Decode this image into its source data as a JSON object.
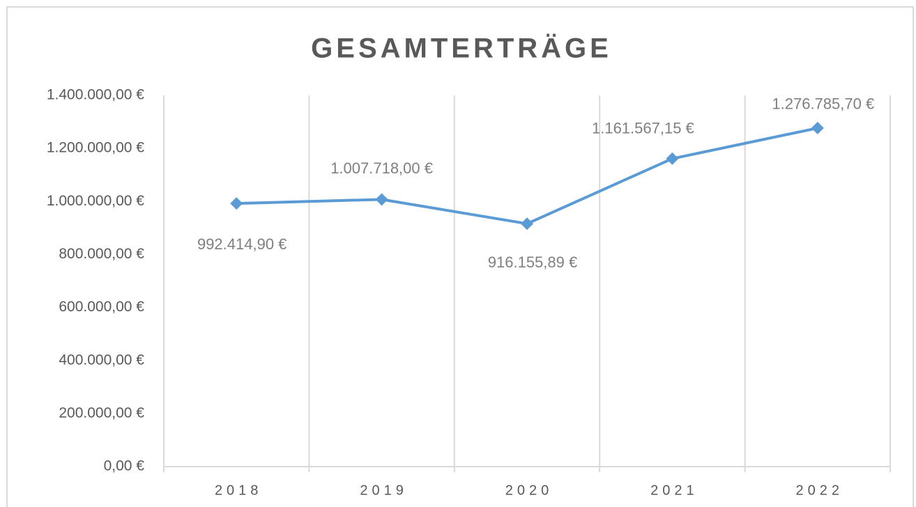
{
  "chart_data": {
    "type": "line",
    "title": "GESAMTERTRÄGE",
    "categories": [
      "2018",
      "2019",
      "2020",
      "2021",
      "2022"
    ],
    "series": [
      {
        "name": "Gesamterträge",
        "color": "#5b9bd5",
        "values": [
          992414.9,
          1007718.0,
          916155.89,
          1161567.15,
          1276785.7
        ],
        "value_labels": [
          "992.414,90 €",
          "1.007.718,00 €",
          "916.155,89 €",
          "1.161.567,15 €",
          "1.276.785,70 €"
        ]
      }
    ],
    "ylim": [
      0,
      1400000
    ],
    "yticks": [
      {
        "value": 0,
        "label": "0,00 €"
      },
      {
        "value": 200000,
        "label": "200.000,00 €"
      },
      {
        "value": 400000,
        "label": "400.000,00 €"
      },
      {
        "value": 600000,
        "label": "600.000,00 €"
      },
      {
        "value": 800000,
        "label": "800.000,00 €"
      },
      {
        "value": 1000000,
        "label": "1.000.000,00 €"
      },
      {
        "value": 1200000,
        "label": "1.200.000,00 €"
      },
      {
        "value": 1400000,
        "label": "1.400.000,00 €"
      }
    ],
    "grid": true
  }
}
